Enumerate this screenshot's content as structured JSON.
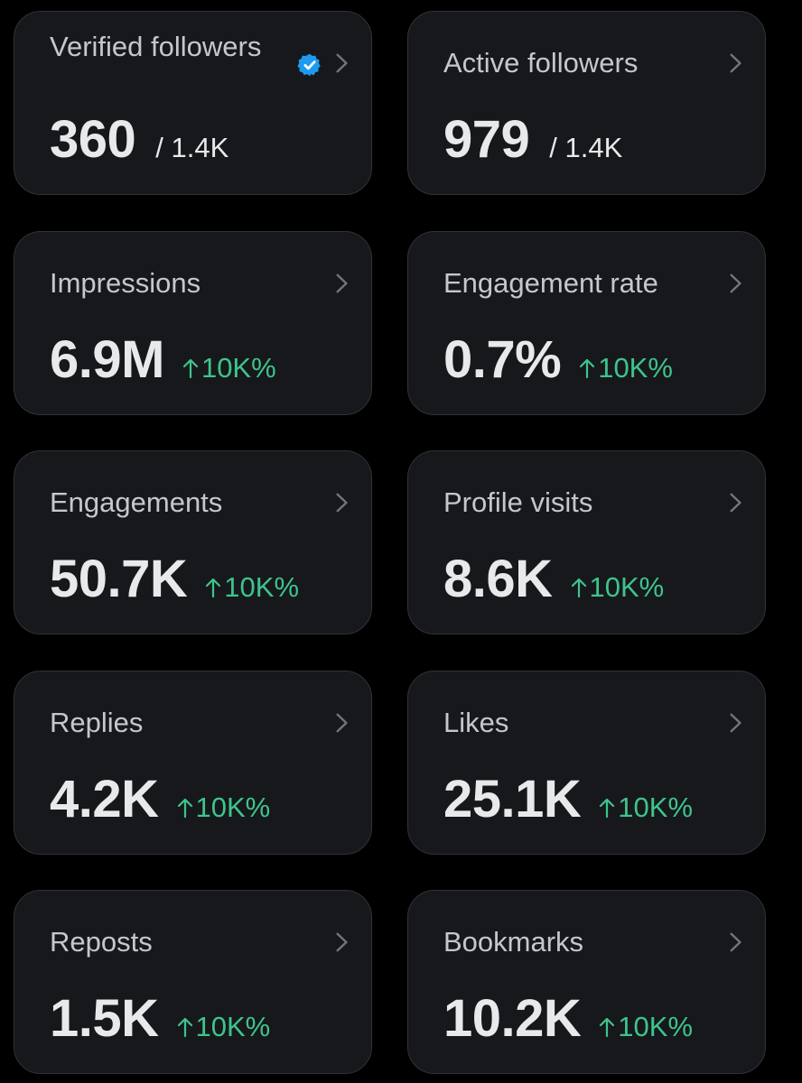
{
  "colors": {
    "background": "#000000",
    "card": "#16181c",
    "card_border": "#2f3336",
    "label": "#c4c8cc",
    "value": "#e7e9ea",
    "positive": "#3ec48b",
    "verified": "#1d9bf0"
  },
  "icons": {
    "chevron": "chevron-right-icon",
    "verified": "verified-badge-icon",
    "trend": "arrow-up-icon"
  },
  "cards": {
    "verified_followers": {
      "label": "Verified followers",
      "value": "360",
      "total": "/ 1.4K"
    },
    "active_followers": {
      "label": "Active followers",
      "value": "979",
      "total": "/ 1.4K"
    },
    "impressions": {
      "label": "Impressions",
      "value": "6.9M",
      "change": "10K%"
    },
    "engagement_rate": {
      "label": "Engagement rate",
      "value": "0.7%",
      "change": "10K%"
    },
    "engagements": {
      "label": "Engagements",
      "value": "50.7K",
      "change": "10K%"
    },
    "profile_visits": {
      "label": "Profile visits",
      "value": "8.6K",
      "change": "10K%"
    },
    "replies": {
      "label": "Replies",
      "value": "4.2K",
      "change": "10K%"
    },
    "likes": {
      "label": "Likes",
      "value": "25.1K",
      "change": "10K%"
    },
    "reposts": {
      "label": "Reposts",
      "value": "1.5K",
      "change": "10K%"
    },
    "bookmarks": {
      "label": "Bookmarks",
      "value": "10.2K",
      "change": "10K%"
    }
  }
}
